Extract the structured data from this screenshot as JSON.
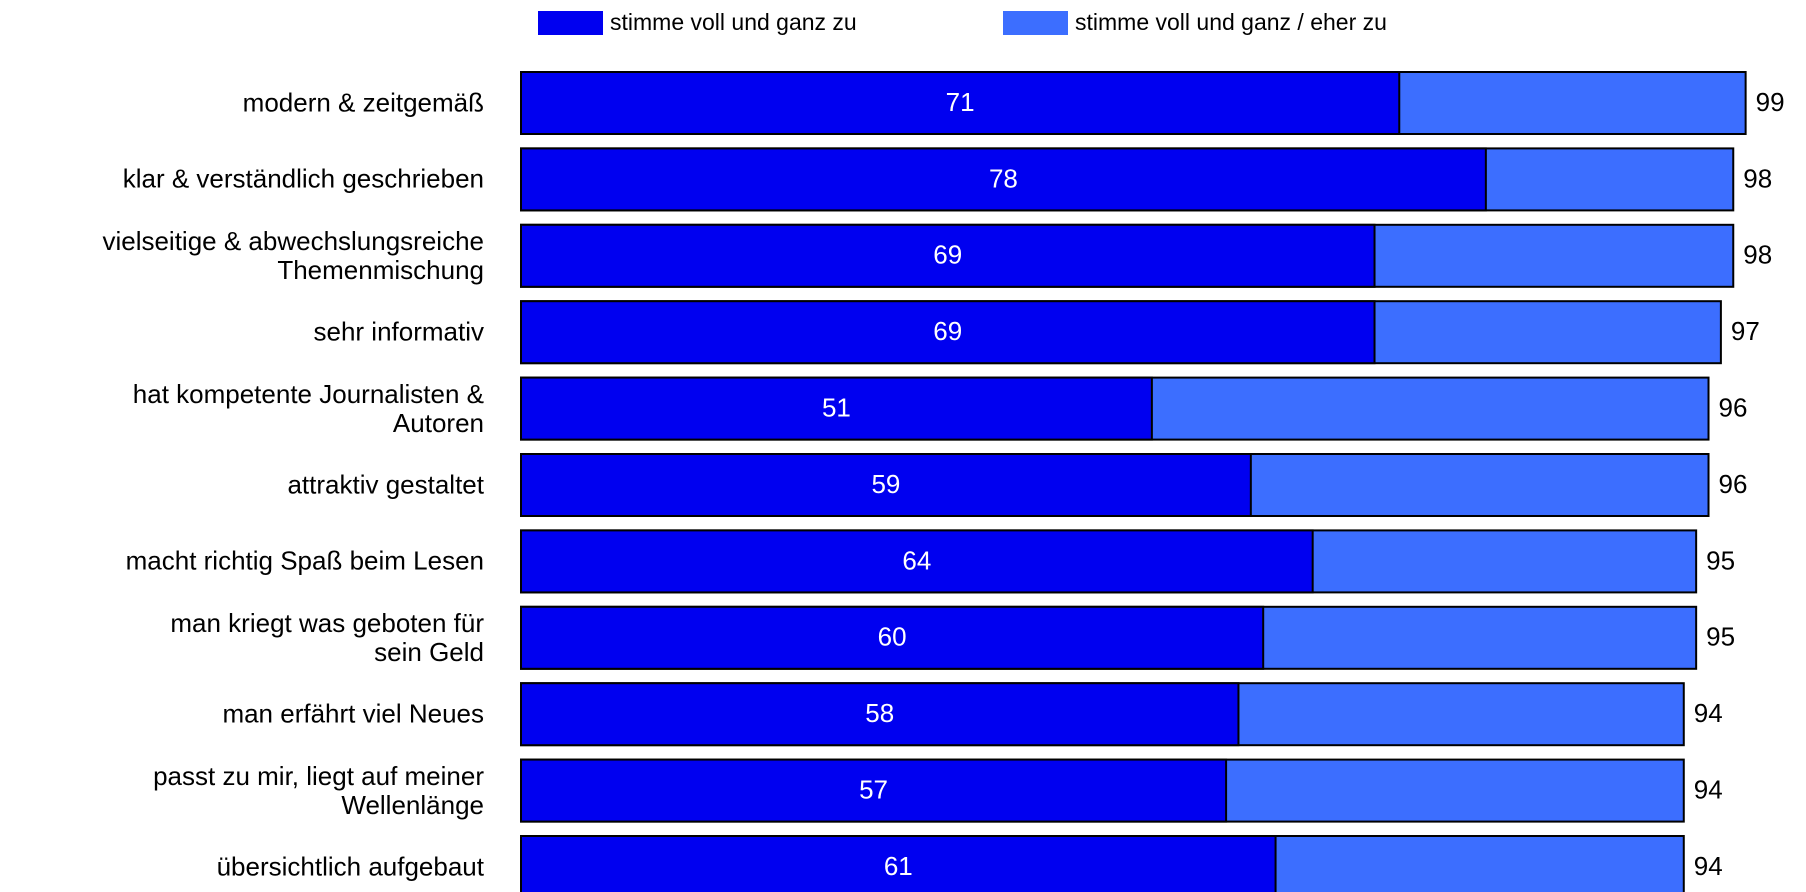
{
  "chart_data": {
    "type": "bar",
    "categories": [
      "modern & zeitgemäß",
      "klar & verständlich geschrieben",
      "vielseitige & abwechslungsreiche\nThemenmischung",
      "sehr informativ",
      "hat kompetente Journalisten &\nAutoren",
      "attraktiv gestaltet",
      "macht richtig Spaß beim Lesen",
      "man kriegt was geboten für\nsein Geld",
      "man erfährt viel Neues",
      "passt zu mir, liegt auf meiner\nWellenlänge",
      "übersichtlich aufgebaut"
    ],
    "series": [
      {
        "name": "stimme voll und ganz zu",
        "color": "#0000f0",
        "values": [
          71,
          78,
          69,
          69,
          51,
          59,
          64,
          60,
          58,
          57,
          61
        ]
      },
      {
        "name": "stimme voll und ganz / eher zu",
        "color": "#3c6eff",
        "values": [
          99,
          98,
          98,
          97,
          96,
          96,
          95,
          95,
          94,
          94,
          94
        ]
      }
    ],
    "legend": "top"
  }
}
